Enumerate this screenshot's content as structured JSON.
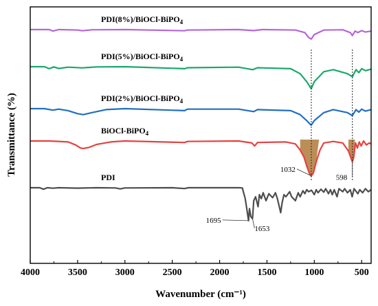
{
  "chart_data": {
    "type": "line",
    "title": "",
    "xlabel": "Wavenumber (cm⁻¹)",
    "ylabel": "Transmittance (%)",
    "xlim": [
      4000,
      400
    ],
    "x_reversed": true,
    "x_ticks": [
      "4000",
      "3500",
      "3000",
      "2500",
      "2000",
      "1500",
      "1000",
      "500"
    ],
    "y_ticks_shown": false,
    "grid": false,
    "series": [
      {
        "name": "PDI(8%)/BiOCl-BiPO₄",
        "color": "#b565d9",
        "points": [
          [
            4000,
            99.0
          ],
          [
            3800,
            99.0
          ],
          [
            3760,
            97.5
          ],
          [
            3700,
            99.0
          ],
          [
            3500,
            98.5
          ],
          [
            3450,
            97.8
          ],
          [
            3350,
            98.8
          ],
          [
            3000,
            99.0
          ],
          [
            2370,
            97.8
          ],
          [
            2340,
            98.5
          ],
          [
            1800,
            99.0
          ],
          [
            1640,
            98.0
          ],
          [
            1550,
            99.0
          ],
          [
            1200,
            98.5
          ],
          [
            1100,
            96.0
          ],
          [
            1060,
            91.0
          ],
          [
            1032,
            89.5
          ],
          [
            1000,
            94.0
          ],
          [
            900,
            98.5
          ],
          [
            700,
            98.8
          ],
          [
            620,
            96.0
          ],
          [
            598,
            93.0
          ],
          [
            570,
            97.5
          ],
          [
            540,
            96.0
          ],
          [
            500,
            98.0
          ],
          [
            460,
            96.5
          ],
          [
            400,
            97.5
          ]
        ]
      },
      {
        "name": "PDI(5%)/BiOCl-BiPO₄",
        "color": "#1aa86a",
        "points": [
          [
            4000,
            77.0
          ],
          [
            3850,
            77.0
          ],
          [
            3800,
            75.0
          ],
          [
            3750,
            76.8
          ],
          [
            3700,
            75.2
          ],
          [
            3600,
            76.5
          ],
          [
            3450,
            75.8
          ],
          [
            3300,
            76.8
          ],
          [
            3000,
            77.0
          ],
          [
            2370,
            75.0
          ],
          [
            2340,
            76.0
          ],
          [
            1800,
            76.5
          ],
          [
            1650,
            74.0
          ],
          [
            1600,
            76.0
          ],
          [
            1250,
            75.0
          ],
          [
            1150,
            70.0
          ],
          [
            1080,
            62.0
          ],
          [
            1040,
            56.0
          ],
          [
            1032,
            55.0
          ],
          [
            1000,
            62.0
          ],
          [
            900,
            72.0
          ],
          [
            800,
            74.0
          ],
          [
            650,
            70.0
          ],
          [
            598,
            67.0
          ],
          [
            560,
            74.0
          ],
          [
            530,
            71.0
          ],
          [
            500,
            75.0
          ],
          [
            460,
            73.0
          ],
          [
            400,
            74.5
          ]
        ]
      },
      {
        "name": "PDI(2%)/BiOCl-BiPO₄",
        "color": "#1f6fc0",
        "points": [
          [
            4000,
            56.0
          ],
          [
            3850,
            56.0
          ],
          [
            3760,
            54.5
          ],
          [
            3700,
            55.5
          ],
          [
            3600,
            54.0
          ],
          [
            3500,
            51.0
          ],
          [
            3440,
            50.0
          ],
          [
            3350,
            52.0
          ],
          [
            3200,
            55.0
          ],
          [
            3000,
            56.0
          ],
          [
            2370,
            54.0
          ],
          [
            2340,
            55.5
          ],
          [
            1800,
            55.5
          ],
          [
            1640,
            53.0
          ],
          [
            1600,
            55.0
          ],
          [
            1250,
            54.0
          ],
          [
            1150,
            50.0
          ],
          [
            1080,
            44.0
          ],
          [
            1040,
            40.0
          ],
          [
            1032,
            39.5
          ],
          [
            1000,
            44.0
          ],
          [
            900,
            52.0
          ],
          [
            800,
            55.0
          ],
          [
            650,
            52.0
          ],
          [
            598,
            49.0
          ],
          [
            560,
            55.0
          ],
          [
            530,
            52.5
          ],
          [
            500,
            55.5
          ],
          [
            460,
            53.5
          ],
          [
            400,
            55.0
          ]
        ]
      },
      {
        "name": "BiOCl-BiPO₄",
        "color": "#e84040",
        "points": [
          [
            4000,
            35.0
          ],
          [
            3800,
            35.0
          ],
          [
            3600,
            34.0
          ],
          [
            3520,
            31.0
          ],
          [
            3470,
            28.0
          ],
          [
            3440,
            27.5
          ],
          [
            3380,
            28.5
          ],
          [
            3300,
            31.5
          ],
          [
            3150,
            34.0
          ],
          [
            3000,
            35.0
          ],
          [
            2370,
            33.5
          ],
          [
            2340,
            34.5
          ],
          [
            1800,
            35.0
          ],
          [
            1660,
            33.0
          ],
          [
            1630,
            30.0
          ],
          [
            1600,
            33.5
          ],
          [
            1300,
            34.0
          ],
          [
            1200,
            32.0
          ],
          [
            1150,
            26.0
          ],
          [
            1110,
            19.0
          ],
          [
            1080,
            10.0
          ],
          [
            1050,
            2.0
          ],
          [
            1032,
            0.0
          ],
          [
            1010,
            3.0
          ],
          [
            980,
            14.0
          ],
          [
            940,
            26.0
          ],
          [
            900,
            33.0
          ],
          [
            800,
            34.5
          ],
          [
            700,
            33.0
          ],
          [
            640,
            25.0
          ],
          [
            610,
            17.0
          ],
          [
            598,
            14.0
          ],
          [
            585,
            18.0
          ],
          [
            565,
            33.0
          ],
          [
            545,
            28.0
          ],
          [
            525,
            34.0
          ],
          [
            505,
            30.0
          ],
          [
            480,
            35.0
          ],
          [
            450,
            31.0
          ],
          [
            420,
            33.0
          ],
          [
            400,
            32.0
          ]
        ]
      },
      {
        "name": "PDI",
        "color": "#4d4d4d",
        "points": [
          [
            4000,
            3.0
          ],
          [
            3900,
            3.0
          ],
          [
            3860,
            1.5
          ],
          [
            3820,
            3.0
          ],
          [
            3760,
            2.5
          ],
          [
            3700,
            3.0
          ],
          [
            3500,
            2.6
          ],
          [
            3300,
            3.0
          ],
          [
            3100,
            2.8
          ],
          [
            3050,
            1.8
          ],
          [
            3000,
            2.8
          ],
          [
            2500,
            3.0
          ],
          [
            2370,
            2.2
          ],
          [
            2330,
            3.0
          ],
          [
            1800,
            3.0
          ],
          [
            1760,
            2.8
          ],
          [
            1730,
            -8.0
          ],
          [
            1710,
            -20.0
          ],
          [
            1695,
            -30.0
          ],
          [
            1685,
            -18.0
          ],
          [
            1670,
            -26.0
          ],
          [
            1653,
            -28.0
          ],
          [
            1640,
            -10.0
          ],
          [
            1620,
            -6.0
          ],
          [
            1594,
            -16.0
          ],
          [
            1580,
            -4.0
          ],
          [
            1560,
            -8.0
          ],
          [
            1540,
            -2.0
          ],
          [
            1510,
            -10.0
          ],
          [
            1480,
            -3.0
          ],
          [
            1440,
            -7.0
          ],
          [
            1410,
            -2.0
          ],
          [
            1390,
            -8.0
          ],
          [
            1370,
            -16.0
          ],
          [
            1355,
            -22.0
          ],
          [
            1340,
            -12.0
          ],
          [
            1320,
            -4.0
          ],
          [
            1300,
            -6.0
          ],
          [
            1260,
            -1.0
          ],
          [
            1240,
            -6.0
          ],
          [
            1200,
            -10.0
          ],
          [
            1170,
            -2.0
          ],
          [
            1150,
            -6.0
          ],
          [
            1120,
            0.0
          ],
          [
            1100,
            -3.0
          ],
          [
            1080,
            1.0
          ],
          [
            1060,
            -1.0
          ],
          [
            1030,
            0.5
          ],
          [
            1000,
            -4.0
          ],
          [
            980,
            1.0
          ],
          [
            960,
            -2.0
          ],
          [
            930,
            1.5
          ],
          [
            900,
            -1.5
          ],
          [
            880,
            2.0
          ],
          [
            850,
            -3.0
          ],
          [
            830,
            1.0
          ],
          [
            810,
            -4.0
          ],
          [
            790,
            1.0
          ],
          [
            760,
            -6.0
          ],
          [
            740,
            2.0
          ],
          [
            700,
            -1.0
          ],
          [
            680,
            2.0
          ],
          [
            650,
            -2.0
          ],
          [
            620,
            1.0
          ],
          [
            600,
            -6.0
          ],
          [
            580,
            2.0
          ],
          [
            540,
            -3.0
          ],
          [
            520,
            1.0
          ],
          [
            490,
            -2.0
          ],
          [
            460,
            2.0
          ],
          [
            430,
            -1.0
          ],
          [
            400,
            1.0
          ]
        ]
      }
    ],
    "annotations": [
      {
        "text": "1032",
        "x": 1032,
        "y": 0.0
      },
      {
        "text": "598",
        "x": 598,
        "y": 14.0
      },
      {
        "text": "1695",
        "x": 1695,
        "y": -30.0
      },
      {
        "text": "1653",
        "x": 1653,
        "y": -28.0
      }
    ],
    "dotted_reference_lines": [
      1032,
      598
    ],
    "highlight_fills": [
      {
        "series": "BiOCl-BiPO₄",
        "from": 1150,
        "to": 950,
        "color": "#b07a3a"
      },
      {
        "series": "BiOCl-BiPO₄",
        "from": 640,
        "to": 570,
        "color": "#b07a3a"
      }
    ]
  }
}
